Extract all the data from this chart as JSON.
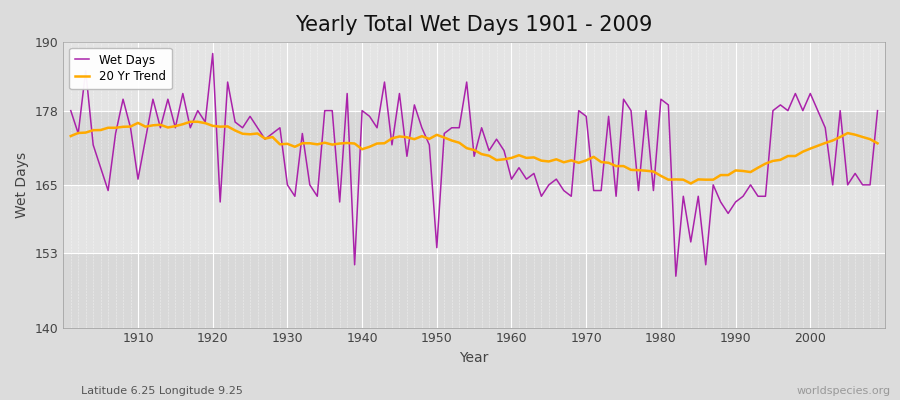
{
  "title": "Yearly Total Wet Days 1901 - 2009",
  "xlabel": "Year",
  "ylabel": "Wet Days",
  "subtitle": "Latitude 6.25 Longitude 9.25",
  "watermark": "worldspecies.org",
  "years": [
    1901,
    1902,
    1903,
    1904,
    1905,
    1906,
    1907,
    1908,
    1909,
    1910,
    1911,
    1912,
    1913,
    1914,
    1915,
    1916,
    1917,
    1918,
    1919,
    1920,
    1921,
    1922,
    1923,
    1924,
    1925,
    1926,
    1927,
    1928,
    1929,
    1930,
    1931,
    1932,
    1933,
    1934,
    1935,
    1936,
    1937,
    1938,
    1939,
    1940,
    1941,
    1942,
    1943,
    1944,
    1945,
    1946,
    1947,
    1948,
    1949,
    1950,
    1951,
    1952,
    1953,
    1954,
    1955,
    1956,
    1957,
    1958,
    1959,
    1960,
    1961,
    1962,
    1963,
    1964,
    1965,
    1966,
    1967,
    1968,
    1969,
    1970,
    1971,
    1972,
    1973,
    1974,
    1975,
    1976,
    1977,
    1978,
    1979,
    1980,
    1981,
    1982,
    1983,
    1984,
    1985,
    1986,
    1987,
    1988,
    1989,
    1990,
    1991,
    1992,
    1993,
    1994,
    1995,
    1996,
    1997,
    1998,
    1999,
    2000,
    2001,
    2002,
    2003,
    2004,
    2005,
    2006,
    2007,
    2008,
    2009
  ],
  "wet_days": [
    178,
    174,
    185,
    172,
    168,
    164,
    174,
    180,
    175,
    166,
    173,
    180,
    175,
    180,
    175,
    181,
    175,
    178,
    176,
    188,
    162,
    183,
    176,
    175,
    177,
    175,
    173,
    174,
    175,
    165,
    163,
    174,
    165,
    163,
    178,
    178,
    162,
    181,
    151,
    178,
    177,
    175,
    183,
    172,
    181,
    170,
    179,
    175,
    172,
    154,
    174,
    175,
    175,
    183,
    170,
    175,
    171,
    173,
    171,
    166,
    168,
    166,
    167,
    163,
    165,
    166,
    164,
    163,
    178,
    177,
    164,
    164,
    177,
    163,
    180,
    178,
    164,
    178,
    164,
    180,
    179,
    149,
    163,
    155,
    163,
    151,
    165,
    162,
    160,
    162,
    163,
    165,
    163,
    163,
    178,
    179,
    178,
    181,
    178,
    181,
    178,
    175,
    165,
    178,
    165,
    167,
    165,
    165,
    178
  ],
  "line_color": "#aa22aa",
  "trend_color": "#ffaa00",
  "fig_bg_color": "#dcdcdc",
  "plot_bg_color": "#dcdcdc",
  "band_color_light": "#e8e8e8",
  "band_color_dark": "#d0d0d0",
  "grid_line_color": "#ffffff",
  "ylim": [
    140,
    190
  ],
  "yticks": [
    140,
    153,
    165,
    178,
    190
  ],
  "xticks": [
    1910,
    1920,
    1930,
    1940,
    1950,
    1960,
    1970,
    1980,
    1990,
    2000
  ],
  "title_fontsize": 15,
  "label_fontsize": 10,
  "tick_fontsize": 9
}
